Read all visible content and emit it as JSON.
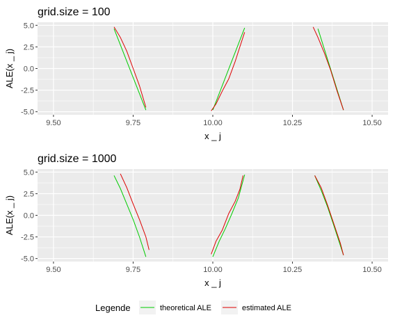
{
  "colors": {
    "theoretical": "#00cc00",
    "estimated": "#dd0000",
    "panel": "#ebebeb",
    "grid": "#ffffff"
  },
  "legend": {
    "title": "Legende",
    "items": [
      {
        "label": "theoretical ALE",
        "color": "#00cc00"
      },
      {
        "label": "estimated ALE",
        "color": "#dd0000"
      }
    ],
    "position": "bottom"
  },
  "chart_data": [
    {
      "type": "line",
      "title": "grid.size = 100",
      "xlabel": "x _ j",
      "ylabel": "ALE(x _ j)",
      "xlim": [
        9.45,
        10.55
      ],
      "ylim": [
        -5.35,
        5.35
      ],
      "xticks": [
        9.5,
        9.75,
        10.0,
        10.25,
        10.5
      ],
      "xtick_labels": [
        "9.50",
        "9.75",
        "10.00",
        "10.25",
        "10.50"
      ],
      "yticks": [
        5.0,
        2.5,
        0.0,
        -2.5,
        -5.0
      ],
      "ytick_labels": [
        "5.0",
        "2.5",
        "0.0",
        "-2.5",
        "-5.0"
      ],
      "grid": true,
      "series": [
        {
          "name": "theoretical ALE",
          "segments": [
            [
              [
                9.69,
                4.6
              ],
              [
                9.79,
                -4.8
              ]
            ],
            [
              [
                10.0,
                -4.8
              ],
              [
                10.1,
                4.7
              ]
            ],
            [
              [
                10.33,
                4.6
              ],
              [
                10.41,
                -4.8
              ]
            ]
          ]
        },
        {
          "name": "estimated ALE",
          "segments": [
            [
              [
                9.69,
                4.8
              ],
              [
                9.71,
                3.6
              ],
              [
                9.73,
                2.0
              ],
              [
                9.75,
                0.0
              ],
              [
                9.77,
                -2.0
              ],
              [
                9.79,
                -4.5
              ]
            ],
            [
              [
                9.995,
                -4.9
              ],
              [
                10.01,
                -4.1
              ],
              [
                10.03,
                -2.6
              ],
              [
                10.05,
                -1.2
              ],
              [
                10.07,
                0.8
              ],
              [
                10.085,
                2.5
              ],
              [
                10.1,
                4.2
              ]
            ],
            [
              [
                10.315,
                4.8
              ],
              [
                10.33,
                3.6
              ],
              [
                10.35,
                1.8
              ],
              [
                10.37,
                -0.2
              ],
              [
                10.39,
                -2.6
              ],
              [
                10.41,
                -4.8
              ]
            ]
          ]
        }
      ]
    },
    {
      "type": "line",
      "title": "grid.size = 1000",
      "xlabel": "x _ j",
      "ylabel": "ALE(x _ j)",
      "xlim": [
        9.45,
        10.55
      ],
      "ylim": [
        -5.35,
        5.35
      ],
      "xticks": [
        9.5,
        9.75,
        10.0,
        10.25,
        10.5
      ],
      "xtick_labels": [
        "9.50",
        "9.75",
        "10.00",
        "10.25",
        "10.50"
      ],
      "yticks": [
        5.0,
        2.5,
        0.0,
        -2.5,
        -5.0
      ],
      "ytick_labels": [
        "5.0",
        "2.5",
        "0.0",
        "-2.5",
        "-5.0"
      ],
      "grid": true,
      "series": [
        {
          "name": "theoretical ALE",
          "segments": [
            [
              [
                9.69,
                4.6
              ],
              [
                9.71,
                3.1
              ],
              [
                9.73,
                1.3
              ],
              [
                9.75,
                -0.5
              ],
              [
                9.77,
                -2.5
              ],
              [
                9.79,
                -4.8
              ]
            ],
            [
              [
                10.0,
                -4.8
              ],
              [
                10.02,
                -3.0
              ],
              [
                10.04,
                -1.5
              ],
              [
                10.06,
                0.2
              ],
              [
                10.08,
                2.0
              ],
              [
                10.1,
                4.7
              ]
            ],
            [
              [
                10.32,
                4.6
              ],
              [
                10.34,
                2.9
              ],
              [
                10.36,
                1.0
              ],
              [
                10.38,
                -1.2
              ],
              [
                10.41,
                -4.6
              ]
            ]
          ]
        },
        {
          "name": "estimated ALE",
          "segments": [
            [
              [
                9.71,
                4.8
              ],
              [
                9.73,
                3.2
              ],
              [
                9.75,
                1.3
              ],
              [
                9.77,
                -0.5
              ],
              [
                9.79,
                -2.5
              ],
              [
                9.8,
                -4.0
              ]
            ],
            [
              [
                9.995,
                -4.5
              ],
              [
                10.01,
                -3.0
              ],
              [
                10.03,
                -1.7
              ],
              [
                10.05,
                0.2
              ],
              [
                10.07,
                1.6
              ],
              [
                10.085,
                3.0
              ],
              [
                10.095,
                4.6
              ]
            ],
            [
              [
                10.32,
                4.6
              ],
              [
                10.34,
                3.2
              ],
              [
                10.36,
                1.2
              ],
              [
                10.38,
                -1.0
              ],
              [
                10.4,
                -3.2
              ],
              [
                10.41,
                -4.6
              ]
            ]
          ]
        }
      ]
    }
  ]
}
